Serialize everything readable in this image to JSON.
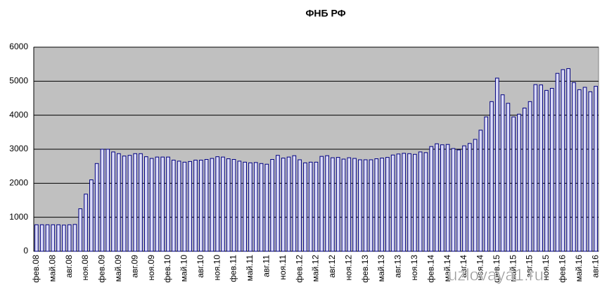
{
  "chart_data": {
    "type": "bar",
    "title": "ФНБ РФ",
    "watermark": "uzlovaya1.ru",
    "categories": [
      "фев.08",
      null,
      null,
      "май.08",
      null,
      null,
      "авг.08",
      null,
      null,
      "ноя.08",
      null,
      null,
      "фев.09",
      null,
      null,
      "май.09",
      null,
      null,
      "авг.09",
      null,
      null,
      "ноя.09",
      null,
      null,
      "фев.10",
      null,
      null,
      "май.10",
      null,
      null,
      "авг.10",
      null,
      null,
      "ноя.10",
      null,
      null,
      "фев.11",
      null,
      null,
      "май.11",
      null,
      null,
      "авг.11",
      null,
      null,
      "ноя.11",
      null,
      null,
      "фев.12",
      null,
      null,
      "май.12",
      null,
      null,
      "авг.12",
      null,
      null,
      "ноя.12",
      null,
      null,
      "фев.13",
      null,
      null,
      "май.13",
      null,
      null,
      "авг.13",
      null,
      null,
      "ноя.13",
      null,
      null,
      "фев.14",
      null,
      null,
      "май.14",
      null,
      null,
      "авг.14",
      null,
      null,
      "ноя.14",
      null,
      null,
      "фев.15",
      null,
      null,
      "май.15",
      null,
      null,
      "авг.15",
      null,
      null,
      "ноя.15",
      null,
      null,
      "фев.16",
      null,
      null,
      "май.16",
      null,
      null,
      "авг.16"
    ],
    "values": [
      780,
      780,
      780,
      780,
      780,
      770,
      780,
      790,
      1250,
      1680,
      2100,
      2580,
      3000,
      3000,
      2920,
      2870,
      2800,
      2820,
      2870,
      2870,
      2780,
      2730,
      2770,
      2770,
      2770,
      2680,
      2650,
      2620,
      2640,
      2680,
      2680,
      2700,
      2730,
      2780,
      2770,
      2720,
      2700,
      2650,
      2620,
      2600,
      2610,
      2580,
      2560,
      2700,
      2820,
      2740,
      2770,
      2810,
      2690,
      2600,
      2620,
      2620,
      2790,
      2810,
      2750,
      2760,
      2710,
      2750,
      2730,
      2690,
      2690,
      2690,
      2720,
      2740,
      2760,
      2830,
      2860,
      2880,
      2870,
      2850,
      2920,
      2900,
      3080,
      3160,
      3130,
      3140,
      3020,
      2980,
      3100,
      3170,
      3290,
      3560,
      3950,
      4400,
      5090,
      4600,
      4350,
      3950,
      4030,
      4210,
      4400,
      4900,
      4890,
      4730,
      4790,
      5230,
      5340,
      5370,
      4960,
      4750,
      4820,
      4690,
      4850
    ],
    "color": "#dcdcf8",
    "stroke": "#000080",
    "ylim": [
      0,
      6000
    ],
    "yticks": [
      0,
      1000,
      2000,
      3000,
      4000,
      5000,
      6000
    ],
    "grid": true
  }
}
